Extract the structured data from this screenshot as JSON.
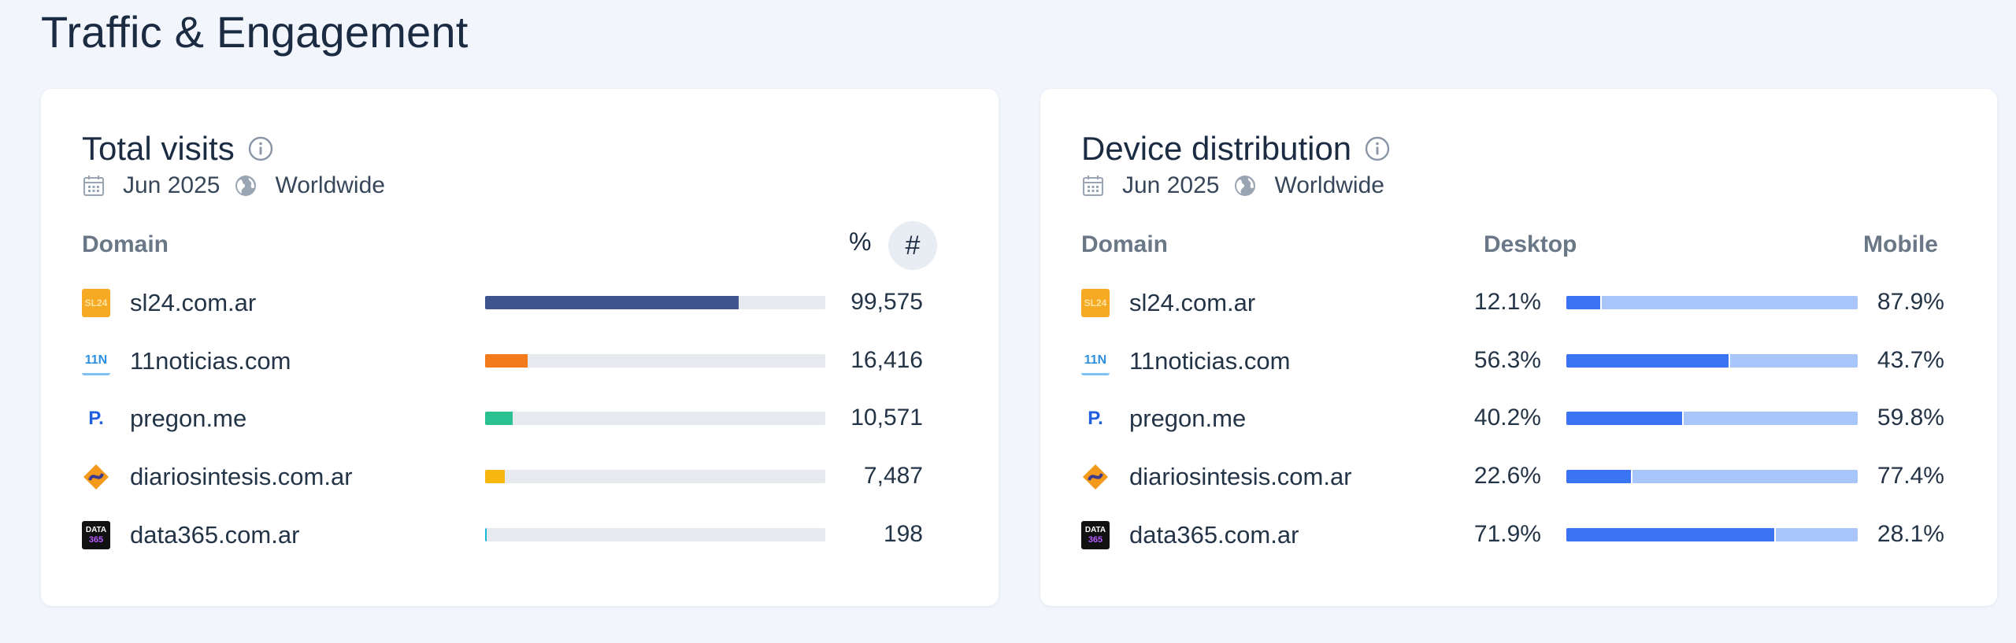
{
  "page_title": "Traffic & Engagement",
  "total_visits": {
    "title": "Total visits",
    "date": "Jun 2025",
    "region": "Worldwide",
    "col_domain": "Domain",
    "toggle_pct": "%",
    "toggle_num": "#",
    "rows": [
      {
        "domain": "sl24.com.ar",
        "value": "99,575",
        "share": 0.745,
        "color": "#3e5490",
        "icon": "sl24-logo"
      },
      {
        "domain": "11noticias.com",
        "value": "16,416",
        "share": 0.125,
        "color": "#f57a1c",
        "icon": "11n-logo"
      },
      {
        "domain": "pregon.me",
        "value": "10,571",
        "share": 0.08,
        "color": "#2bc08f",
        "icon": "pregon-logo"
      },
      {
        "domain": "diariosintesis.com.ar",
        "value": "7,487",
        "share": 0.057,
        "color": "#f8b70e",
        "icon": "diariosintesis-logo"
      },
      {
        "domain": "data365.com.ar",
        "value": "198",
        "share": 0.0015,
        "color": "#19b8d8",
        "icon": "data365-logo"
      }
    ]
  },
  "device_distribution": {
    "title": "Device distribution",
    "date": "Jun 2025",
    "region": "Worldwide",
    "col_domain": "Domain",
    "col_desktop": "Desktop",
    "col_mobile": "Mobile",
    "colors": {
      "desktop": "#3b74f2",
      "mobile": "#a9c6fa"
    },
    "rows": [
      {
        "domain": "sl24.com.ar",
        "desktop": "12.1%",
        "mobile": "87.9%",
        "desktop_share": 0.121
      },
      {
        "domain": "11noticias.com",
        "desktop": "56.3%",
        "mobile": "43.7%",
        "desktop_share": 0.563
      },
      {
        "domain": "pregon.me",
        "desktop": "40.2%",
        "mobile": "59.8%",
        "desktop_share": 0.402
      },
      {
        "domain": "diariosintesis.com.ar",
        "desktop": "22.6%",
        "mobile": "77.4%",
        "desktop_share": 0.226
      },
      {
        "domain": "data365.com.ar",
        "desktop": "71.9%",
        "mobile": "28.1%",
        "desktop_share": 0.719
      }
    ]
  },
  "favicon_text": {
    "sl24": "SL24",
    "n11": "11N",
    "pregon": "P.",
    "data365_top": "DATA",
    "data365_bottom": "365"
  }
}
